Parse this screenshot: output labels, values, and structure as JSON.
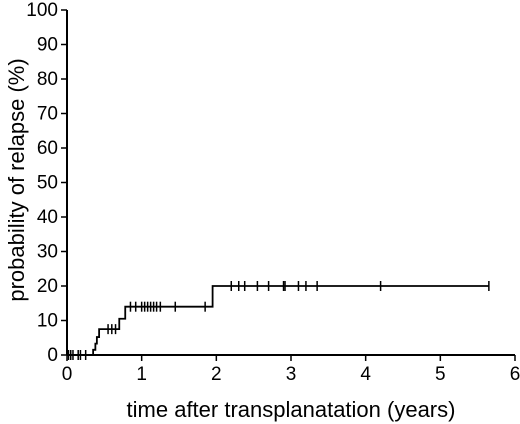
{
  "chart_data": {
    "type": "line",
    "subtype": "kaplan-meier-step",
    "title": "",
    "xlabel": "time after transplanatation (years)",
    "ylabel": "probability of relapse (%)",
    "xlim": [
      0,
      6
    ],
    "ylim": [
      0,
      100
    ],
    "x_ticks": [
      0,
      1,
      2,
      3,
      4,
      5,
      6
    ],
    "y_ticks": [
      0,
      10,
      20,
      30,
      40,
      50,
      60,
      70,
      80,
      90,
      100
    ],
    "grid": false,
    "legend": "none",
    "colors": {
      "line": "#000000",
      "axis": "#000000",
      "background": "#ffffff"
    },
    "series": [
      {
        "steps": [
          {
            "x": 0,
            "y": 0
          },
          {
            "x": 0.35,
            "y": 0
          },
          {
            "x": 0.35,
            "y": 1.5
          },
          {
            "x": 0.38,
            "y": 1.5
          },
          {
            "x": 0.38,
            "y": 3.3
          },
          {
            "x": 0.4,
            "y": 3.3
          },
          {
            "x": 0.4,
            "y": 5.2
          },
          {
            "x": 0.43,
            "y": 5.2
          },
          {
            "x": 0.43,
            "y": 7.5
          },
          {
            "x": 0.7,
            "y": 7.5
          },
          {
            "x": 0.7,
            "y": 10.5
          },
          {
            "x": 0.78,
            "y": 10.5
          },
          {
            "x": 0.78,
            "y": 14
          },
          {
            "x": 1.95,
            "y": 14
          },
          {
            "x": 1.95,
            "y": 20
          },
          {
            "x": 5.65,
            "y": 20
          }
        ],
        "censored": [
          {
            "x": 0.02,
            "y": 0
          },
          {
            "x": 0.05,
            "y": 0
          },
          {
            "x": 0.08,
            "y": 0
          },
          {
            "x": 0.15,
            "y": 0
          },
          {
            "x": 0.18,
            "y": 0
          },
          {
            "x": 0.25,
            "y": 0
          },
          {
            "x": 0.55,
            "y": 7.5
          },
          {
            "x": 0.6,
            "y": 7.5
          },
          {
            "x": 0.65,
            "y": 7.5
          },
          {
            "x": 0.85,
            "y": 14
          },
          {
            "x": 0.92,
            "y": 14
          },
          {
            "x": 1.0,
            "y": 14
          },
          {
            "x": 1.04,
            "y": 14
          },
          {
            "x": 1.08,
            "y": 14
          },
          {
            "x": 1.12,
            "y": 14
          },
          {
            "x": 1.16,
            "y": 14
          },
          {
            "x": 1.2,
            "y": 14
          },
          {
            "x": 1.25,
            "y": 14
          },
          {
            "x": 1.45,
            "y": 14
          },
          {
            "x": 1.85,
            "y": 14
          },
          {
            "x": 2.2,
            "y": 20
          },
          {
            "x": 2.3,
            "y": 20
          },
          {
            "x": 2.38,
            "y": 20
          },
          {
            "x": 2.55,
            "y": 20
          },
          {
            "x": 2.7,
            "y": 20
          },
          {
            "x": 2.9,
            "y": 20
          },
          {
            "x": 2.92,
            "y": 20
          },
          {
            "x": 3.1,
            "y": 20
          },
          {
            "x": 3.2,
            "y": 20
          },
          {
            "x": 3.35,
            "y": 20
          },
          {
            "x": 4.2,
            "y": 20
          },
          {
            "x": 5.65,
            "y": 20
          }
        ]
      }
    ]
  }
}
